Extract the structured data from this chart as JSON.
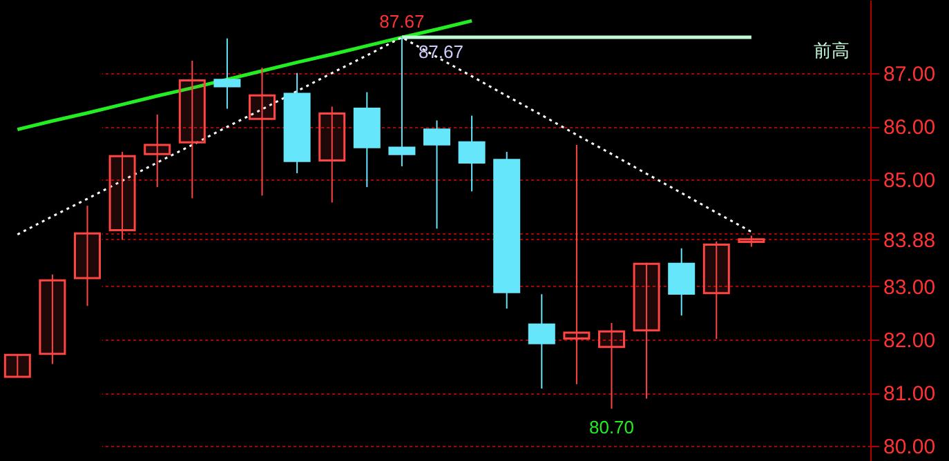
{
  "chart_data": {
    "type": "candlestick",
    "categories": [
      null,
      null,
      null,
      null,
      null,
      null,
      null,
      null,
      null,
      null,
      null,
      null,
      null,
      null,
      null,
      null,
      null,
      null,
      null,
      null,
      null,
      null
    ],
    "ohlc": [
      [
        81.3,
        81.71,
        81.3,
        81.71
      ],
      [
        81.73,
        83.22,
        81.54,
        83.11
      ],
      [
        83.15,
        84.51,
        82.63,
        83.99
      ],
      [
        84.05,
        85.52,
        83.87,
        85.44
      ],
      [
        85.48,
        86.22,
        84.86,
        85.65
      ],
      [
        85.7,
        87.23,
        84.65,
        86.86
      ],
      [
        86.87,
        87.65,
        86.33,
        86.75
      ],
      [
        86.14,
        87.1,
        84.7,
        86.58
      ],
      [
        86.61,
        87.0,
        85.12,
        85.35
      ],
      [
        85.36,
        86.37,
        84.57,
        86.24
      ],
      [
        86.33,
        86.64,
        84.86,
        85.61
      ],
      [
        85.6,
        87.67,
        85.25,
        85.48
      ],
      [
        85.94,
        86.11,
        84.08,
        85.66
      ],
      [
        85.7,
        86.2,
        84.78,
        85.32
      ],
      [
        85.37,
        85.52,
        82.58,
        82.89
      ],
      [
        82.28,
        82.85,
        81.08,
        81.93
      ],
      [
        82.02,
        85.65,
        81.16,
        82.13
      ],
      [
        81.86,
        82.31,
        80.7,
        82.15
      ],
      [
        82.17,
        83.44,
        80.89,
        83.42
      ],
      [
        83.42,
        83.71,
        82.45,
        82.86
      ],
      [
        82.87,
        83.84,
        82.01,
        83.78
      ],
      [
        83.83,
        83.95,
        83.74,
        83.88
      ]
    ],
    "colors": [
      "#ff4444",
      "#ff4444",
      "#ff4444",
      "#ff4444",
      "#ff4444",
      "#ff4444",
      "#66e6fb",
      "#ff4444",
      "#66e6fb",
      "#ff4444",
      "#66e6fb",
      "#66e6fb",
      "#66e6fb",
      "#66e6fb",
      "#66e6fb",
      "#66e6fb",
      "#ff4444",
      "#ff4444",
      "#ff4444",
      "#66e6fb",
      "#ff4444",
      "#ff4444"
    ],
    "series": [
      {
        "type": "line",
        "color": "#22ee22",
        "values": [
          85.94,
          86.1,
          86.25,
          86.41,
          86.57,
          86.72,
          86.88,
          87.04,
          87.2,
          87.35,
          87.51,
          87.67,
          87.82,
          87.98,
          null,
          null,
          null,
          null,
          null,
          null,
          null,
          null
        ]
      },
      {
        "type": "line",
        "color": "#ffffff",
        "line_style": "dotted",
        "values": [
          83.97,
          84.31,
          84.64,
          84.98,
          85.32,
          85.65,
          85.99,
          86.32,
          86.66,
          87.0,
          87.33,
          87.67,
          87.3,
          86.94,
          86.57,
          86.21,
          85.84,
          85.48,
          85.11,
          84.75,
          84.38,
          84.02
        ]
      },
      {
        "type": "line",
        "name": "前高",
        "color": "#c0f8d8",
        "values": [
          null,
          null,
          null,
          null,
          null,
          null,
          null,
          null,
          null,
          null,
          null,
          87.67,
          87.67,
          87.67,
          87.67,
          87.67,
          87.67,
          87.67,
          87.67,
          87.67,
          87.67,
          87.67
        ]
      }
    ],
    "ylim": [
      79.72,
      88.37
    ],
    "yticks": [
      {
        "value": 80,
        "label": "80.00"
      },
      {
        "value": 81,
        "label": "81.00"
      },
      {
        "value": 82,
        "label": "82.00"
      },
      {
        "value": 83,
        "label": "83.00"
      },
      {
        "value": 83.88,
        "label": "83.88"
      },
      {
        "value": 84,
        "label": null
      },
      {
        "value": 85,
        "label": "85.00"
      },
      {
        "value": 86,
        "label": "86.00"
      },
      {
        "value": 87,
        "label": "87.00"
      }
    ],
    "grid": "y",
    "tick_labels": "y",
    "annotations": [
      {
        "text": "87.67",
        "y": 87.67
      },
      {
        "text": "87.67",
        "y": 87.67
      },
      {
        "text": "80.70",
        "y": 80.7
      }
    ]
  }
}
